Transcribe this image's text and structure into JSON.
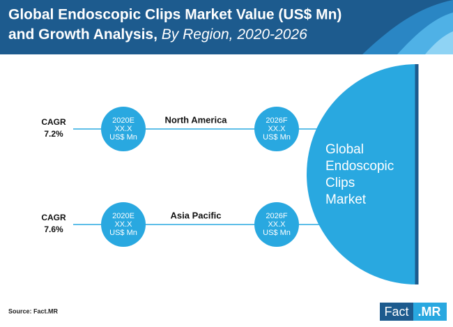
{
  "header": {
    "title_line1": "Global Endoscopic Clips Market Value (US$ Mn)",
    "title_line2": "and Growth Analysis,",
    "title_italic": "By Region, 2020-2026"
  },
  "regions": [
    {
      "cagr_label": "CAGR",
      "cagr_value": "7.2%",
      "name": "North America",
      "start": {
        "year": "2020E",
        "value": "XX.X",
        "unit": "US$ Mn"
      },
      "end": {
        "year": "2026F",
        "value": "XX.X",
        "unit": "US$ Mn"
      }
    },
    {
      "cagr_label": "CAGR",
      "cagr_value": "7.6%",
      "name": "Asia Pacific",
      "start": {
        "year": "2020E",
        "value": "XX.X",
        "unit": "US$ Mn"
      },
      "end": {
        "year": "2026F",
        "value": "XX.X",
        "unit": "US$ Mn"
      }
    }
  ],
  "market": {
    "lines": [
      "Global",
      "Endoscopic",
      "Clips",
      "Market"
    ]
  },
  "footer": {
    "source": "Source: Fact.MR",
    "logo_main": "Fact",
    "logo_accent": ".MR"
  }
}
